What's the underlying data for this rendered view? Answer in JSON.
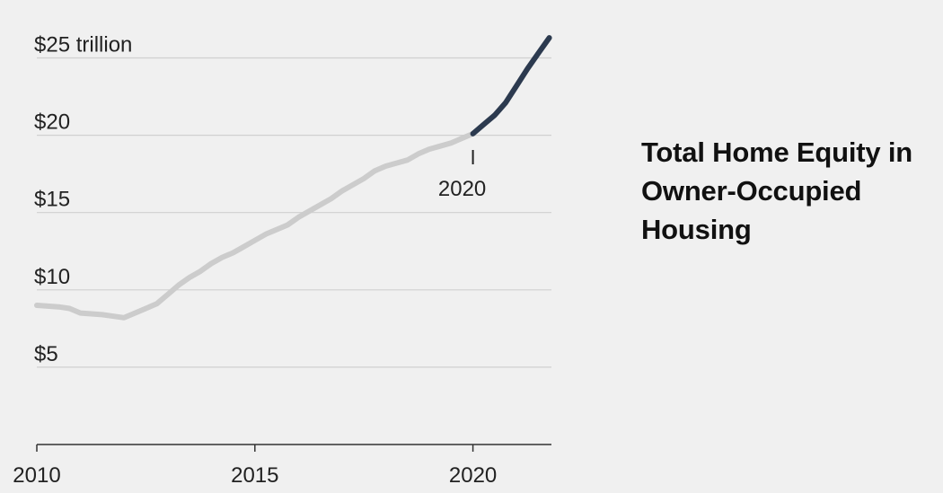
{
  "chart_data": {
    "type": "line",
    "title": "Total Home Equity in Owner-Occupied Housing",
    "xlabel": "",
    "ylabel": "",
    "xlim": [
      2010,
      2021.8
    ],
    "ylim": [
      0,
      25
    ],
    "y_ticks": [
      {
        "value": 25,
        "label": "$25 trillion"
      },
      {
        "value": 20,
        "label": "$20"
      },
      {
        "value": 15,
        "label": "$15"
      },
      {
        "value": 10,
        "label": "$10"
      },
      {
        "value": 5,
        "label": "$5"
      }
    ],
    "x_ticks": [
      {
        "value": 2010,
        "label": "2010"
      },
      {
        "value": 2015,
        "label": "2015"
      },
      {
        "value": 2020,
        "label": "2020"
      }
    ],
    "grid": true,
    "annotation": {
      "x": 2020,
      "label": "2020"
    },
    "colors": {
      "before_2020": "#cccccc",
      "from_2020": "#2c3a4f",
      "grid": "#d0d0d0",
      "axis": "#333333"
    },
    "series": [
      {
        "x": [
          2010.0,
          2010.5,
          2010.75,
          2011.0,
          2011.5,
          2012.0,
          2012.25,
          2012.5,
          2012.75,
          2013.0,
          2013.25,
          2013.5,
          2013.75,
          2014.0,
          2014.25,
          2014.5,
          2014.75,
          2015.0,
          2015.25,
          2015.5,
          2015.75,
          2016.0,
          2016.25,
          2016.5,
          2016.75,
          2017.0,
          2017.25,
          2017.5,
          2017.75,
          2018.0,
          2018.25,
          2018.5,
          2018.75,
          2019.0,
          2019.25,
          2019.5,
          2019.75,
          2020.0
        ],
        "values": [
          9.0,
          8.9,
          8.8,
          8.5,
          8.4,
          8.2,
          8.5,
          8.8,
          9.1,
          9.7,
          10.3,
          10.8,
          11.2,
          11.7,
          12.1,
          12.4,
          12.8,
          13.2,
          13.6,
          13.9,
          14.2,
          14.7,
          15.1,
          15.5,
          15.9,
          16.4,
          16.8,
          17.2,
          17.7,
          18.0,
          18.2,
          18.4,
          18.8,
          19.1,
          19.3,
          19.5,
          19.8,
          20.1
        ]
      },
      {
        "x": [
          2020.0,
          2020.25,
          2020.5,
          2020.75,
          2021.0,
          2021.25,
          2021.5,
          2021.75
        ],
        "values": [
          20.1,
          20.7,
          21.3,
          22.1,
          23.2,
          24.3,
          25.3,
          26.3
        ]
      }
    ]
  }
}
